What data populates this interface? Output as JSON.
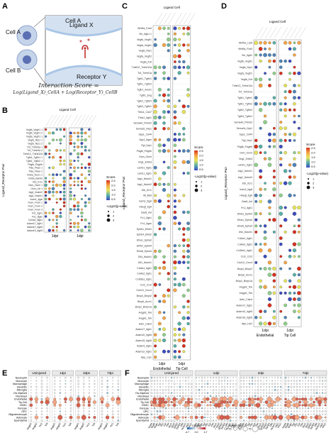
{
  "panel_labels": {
    "a": "A",
    "b": "B",
    "c": "C",
    "d": "D",
    "e": "E",
    "f": "F"
  },
  "panel_a": {
    "cell_a": "Cell A",
    "cell_b": "Cell B",
    "ligand": "Ligand X",
    "receptor": "Receptor Y",
    "formula_title": "Interaction Score =",
    "formula_body": "Log(Ligand_X)_CellA + Log(Receptor_Y)_CellB",
    "colors": {
      "cell_fill": "#c6d4ea",
      "cell_core": "#5d6fb3",
      "membrane": "#a9c6e6",
      "ligand_dot": "#d07070",
      "receptor": "#c03030"
    }
  },
  "panel_b": {
    "top_title": "Ligand Cell",
    "y_title": "Ligand_Receptor Pair",
    "rows": [
      "Vegfb_Vegfr1 1",
      "Vegfb_Vegfr1 2",
      "Vegfa_Vegfr1 1",
      "Vegfa_Nrp1 1",
      "Vegfa_Nrp1 2",
      "Tnf_Tnfrsf1a 1",
      "Tnf_Tnfrsf1a 2",
      "Tnfsf12_Tnfrsf12a",
      "Tgfb1_Tgfbr1 1",
      "Tgfb1_Tgfbr2 1",
      "Pdgfb_Pdgfrb",
      "Plau_Plaur 1",
      "Plau_Plaur 2",
      "Inhba_Acvr1 1",
      "Inhba_Bambi",
      "Il1b_Il1r1",
      "Osm_Osmr 1",
      "Osm_Lifr 1",
      "Jag1_Notch2",
      "Jag1_Notch1",
      "Icam1_Itgal",
      "Frem_Frem 1",
      "Frem_Frem 2",
      "Frem_Frem 3",
      "Fn1_Itgb1",
      "Fn1_Itgav",
      "Col4a1_Itgb1",
      "Adam17_Itgb1",
      "Adam10_Itgb5",
      "Adam15_Itgb5"
    ],
    "x_groups": [
      {
        "label": "1dpi",
        "sub": "Endothelial"
      },
      {
        "label": "1dpi",
        "sub": "Tip Cell"
      }
    ],
    "score_title": "Score",
    "score_ticks": [
      "2.5",
      "2.0",
      "1.5",
      "1.0",
      "0.5"
    ],
    "size_title": "-Log10(p-value)",
    "size_ticks": [
      "1",
      "2",
      "3"
    ]
  },
  "panel_c": {
    "top_title": "Ligand Cell",
    "y_title": "Ligand_Receptor Pair",
    "rows": [
      "Wnt5a_Fzd4",
      "Vtn_Itgb1 1",
      "Vegfb_Vegfr1",
      "Vegfa_Vegfr1",
      "Vegfa_Nrp1",
      "Vegfa_Vegfr2",
      "Vegfa_Kdr",
      "Tnfsf12_Tnfrsf12a",
      "Tnf_Tnfrsf1a",
      "Tgfb1_Tgfbr1",
      "Tgfb1_Tgfbr2",
      "Tgfb1_Acvrl1",
      "Tgfb1_Eng",
      "Tgfb2_Tgfbr2",
      "Tgfb3_Tgfbr1",
      "Thbs1_Cd47",
      "Thbs1_Itgb1",
      "Sema4d_Plxnb2",
      "Sema3c_Nrp1",
      "Spp1_Cd44",
      "Spp1_Itgav",
      "Pgf_Nrp1",
      "Pdgfb_Pdgfrb",
      "Osm_Osmr",
      "Nrg1_Erbb3",
      "Lamb1_Itgb1",
      "Lamc1_Itgb1",
      "Jag1_Notch1",
      "Jag1_Notch2",
      "Il1b_Il1r1",
      "Il6_Il6st",
      "Icam1_Itgal",
      "Hbegf_Egfr",
      "Gas6_Axl",
      "Fn1_Itgb1",
      "Fn1_Itgav",
      "Ephb1_Efnb2",
      "Ephb4_Efnb2",
      "Efna1_Epha2",
      "Efnb2_Ephb4",
      "Efna5_Epha4",
      "Dll4_Notch1",
      "Dll1_Notch1",
      "Col4a1_Itgb1",
      "Col4a2_Itgb1",
      "Col18a1_Itgb1",
      "Ccl2_Ccr2",
      "Cxcl12_Cxcr4",
      "Bmp4_Bmpr2",
      "Bmp6_Acvr1",
      "Bmp2_Bmpr1a",
      "Angpt2_Tek",
      "Angpt1_Tek",
      "Adm_Calcrl",
      "Adam17_Itgb1",
      "Adam10_Itgb5",
      "Adam15_Itgb5",
      "Adam9_Itgb1",
      "Adam12_Itgb1",
      "App_Lrp1"
    ],
    "x_groups": [
      {
        "label": "1dpi",
        "sub": "Endothelial"
      },
      {
        "label": "1dpi",
        "sub": "Tip Cell"
      }
    ],
    "score_title": "Score",
    "score_ticks": [
      "2.5",
      "2.0",
      "1.5",
      "1.0",
      "0.5"
    ],
    "size_title": "-Log10(p-value)",
    "size_ticks": [
      "1",
      "2",
      "3"
    ]
  },
  "panel_d": {
    "top_title": "Ligand Cell",
    "y_title": "Ligand_Receptor Pair",
    "rows": [
      "Wnt5a_Lrp5",
      "Wnt5a_Fzd4",
      "Vtn_Itgb1",
      "Vegfb_Vegfr1",
      "Vegfa_Nrp1",
      "Vegfa_Vegfr1",
      "Vegfa_Kdr",
      "Tnfsf12_Tnfrsf12a",
      "Tnf_Tnfrsf1a",
      "Tgfb1_Tgfbr1",
      "Tgfb1_Tgfbr2",
      "Tgfb2_Tgfbr2",
      "Tgfb3_Tgfbr1",
      "Sema4d_Plxnb2",
      "Sema3c_Nrp1",
      "Spp1_Cd44",
      "Pgf_Nrp1",
      "Pdgfb_Pdgfrb",
      "Osm_Osmr",
      "Nrg1_Erbb3",
      "Lamb1_Itgb1",
      "Jag1_Notch1",
      "Jag1_Notch2",
      "Il1b_Il1r1",
      "Icam1_Itgal",
      "Hbegf_Egfr",
      "Gas6_Axl",
      "Fn1_Itgb1",
      "Efnb2_Ephb4",
      "Efna1_Epha2",
      "Efna5_Epha4",
      "Dll4_Notch1",
      "Col4a1_Itgb1",
      "Col4a2_Itgb1",
      "Col18a1_Itgb1",
      "Ccl2_Ccr2",
      "Cxcl12_Cxcr4",
      "Bmp4_Bmpr2",
      "Bmp6_Acvr1",
      "Bmp2_Bmpr1a",
      "Angpt2_Tek",
      "Angpt1_Tek",
      "Adm_Calcrl",
      "Adam17_Itgb1",
      "Adam10_Itgb5",
      "Adam15_Itgb5",
      "App_Lrp1"
    ],
    "x_groups": [
      {
        "label": "1dpi",
        "sub": "Endothelial"
      },
      {
        "label": "1dpi",
        "sub": "Tip Cell"
      }
    ],
    "score_title": "Score",
    "score_ticks": [
      "2.5",
      "2.0",
      "1.5",
      "1.0",
      "0.5"
    ],
    "size_title": "-Log10(p-value)",
    "size_ticks": [
      "1",
      "2",
      "3"
    ]
  },
  "panel_e": {
    "timepoints": [
      "Uninjured",
      "1dpi",
      "3dps",
      "7dpi"
    ],
    "rows": [
      "Neutrophil",
      "Monocyte",
      "Macrophage",
      "Dendritic",
      "Microglia",
      "Div-Myeloid",
      "Fibroblast",
      "Endothelial",
      "Tip Cell",
      "VSMC",
      "Pericyte",
      "OPC",
      "Oligodendrocyte",
      "Astrocyte",
      "Ependymal"
    ],
    "genes": [
      "Angpt1",
      "Angpt2",
      "Tie1",
      "Tek"
    ]
  },
  "panel_f": {
    "timepoints": [
      "Uninjured",
      "1dpi",
      "3dpi",
      "7dpi"
    ],
    "rows": [
      "Neutrophil",
      "Monocyte",
      "Macrophage",
      "Dendritic",
      "Microglia",
      "Div-Myeloid",
      "Fibroblast",
      "Endothelial",
      "Tip Cell",
      "VSMC",
      "Pericyte",
      "OPC",
      "Oligodendrocyte",
      "Astrocyte",
      "Ependymal"
    ],
    "genes": [
      "Vegfa",
      "Vegfb",
      "Vegfc",
      "Pgf",
      "Flt1",
      "Kdr",
      "Flt4",
      "Nrp1",
      "Nrp2",
      "Efnb2",
      "Ephb4",
      "Dll4",
      "Notch1",
      "Jag1",
      "Hey1"
    ],
    "zscore_title": "z-score",
    "zscore_ticks": [
      "-4.7",
      "0.0",
      "4.7"
    ],
    "pct_title": "% detected",
    "pct_ticks": [
      "0",
      "25",
      "50",
      "75",
      "100"
    ]
  }
}
